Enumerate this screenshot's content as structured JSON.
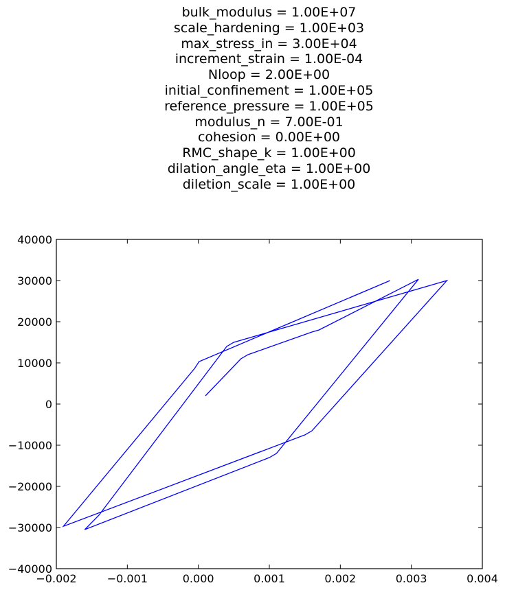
{
  "chart_data": {
    "type": "line",
    "title_lines": [
      "bulk_modulus = 1.00E+07",
      "scale_hardening = 1.00E+03",
      "max_stress_in = 3.00E+04",
      "increment_strain = 1.00E-04",
      "Nloop = 2.00E+00",
      "initial_confinement = 1.00E+05",
      "reference_pressure = 1.00E+05",
      "modulus_n = 7.00E-01",
      "cohesion = 0.00E+00",
      "RMC_shape_k = 1.00E+00",
      "dilation_angle_eta = 1.00E+00",
      "diletion_scale = 1.00E+00"
    ],
    "xlabel": "",
    "ylabel": "",
    "xlim": [
      -0.002,
      0.004
    ],
    "ylim": [
      -40000,
      40000
    ],
    "xticks": [
      -0.002,
      -0.001,
      0.0,
      0.001,
      0.002,
      0.003,
      0.004
    ],
    "xtick_labels": [
      "−0.002",
      "−0.001",
      "0.000",
      "0.001",
      "0.002",
      "0.003",
      "0.004"
    ],
    "yticks": [
      -40000,
      -30000,
      -20000,
      -10000,
      0,
      10000,
      20000,
      30000,
      40000
    ],
    "ytick_labels": [
      "−40000",
      "−30000",
      "−20000",
      "−10000",
      "0",
      "10000",
      "20000",
      "30000",
      "40000"
    ],
    "grid": false,
    "series": [
      {
        "color": "#0000ff",
        "x": [
          0.0001,
          0.0006,
          0.0007,
          0.0016,
          0.0017,
          0.0031,
          0.0011,
          0.001,
          -0.0016,
          -0.0014,
          0.0004,
          0.0005,
          0.0035,
          0.0016,
          0.0015,
          -0.0019,
          -5e-05,
          1e-05,
          0.0027
        ],
        "y": [
          2000,
          11000,
          12000,
          17500,
          18000,
          30300,
          -12000,
          -13000,
          -30500,
          -27000,
          14000,
          15000,
          30000,
          -6500,
          -7500,
          -29700,
          8700,
          10300,
          30000
        ]
      }
    ]
  }
}
